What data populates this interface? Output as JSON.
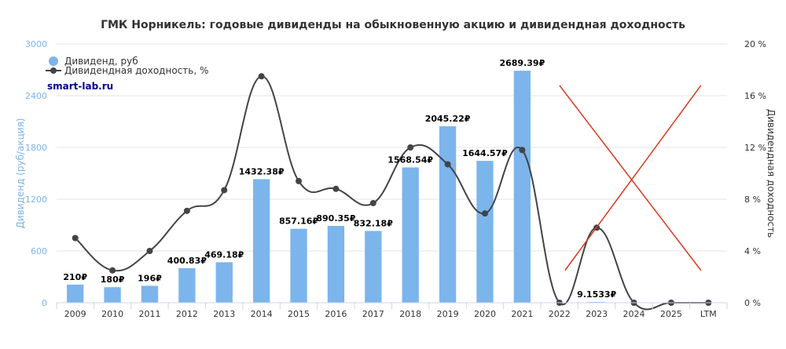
{
  "chart_data": {
    "type": "bar",
    "title": "ГМК Норникель: годовые дивиденды на обыкновенную акцию и дивидендная доходность",
    "credit": "smart-lab.ru",
    "categories": [
      "2009",
      "2010",
      "2011",
      "2012",
      "2013",
      "2014",
      "2015",
      "2016",
      "2017",
      "2018",
      "2019",
      "2020",
      "2021",
      "2022",
      "2023",
      "2024",
      "2025",
      "LTM"
    ],
    "ylabel": "Дивиденд (руб/акция)",
    "ylabel_right": "Дивидендная доходность",
    "ylim": [
      0,
      3000
    ],
    "ylim_right": [
      0,
      20
    ],
    "y_ticks": [
      "0",
      "600",
      "1200",
      "1800",
      "2400",
      "3000"
    ],
    "y_ticks_right": [
      "0 %",
      "4 %",
      "8 %",
      "12 %",
      "16 %",
      "20 %"
    ],
    "legend_position": "top-left",
    "grid": true,
    "series": [
      {
        "name": "Дивиденд, руб",
        "type": "bar",
        "color": "#7cb5ec",
        "values": [
          210,
          180,
          196,
          400.83,
          469.18,
          1432.38,
          857.16,
          890.35,
          832.18,
          1568.54,
          2045.22,
          1644.57,
          2689.39,
          null,
          9.1533,
          null,
          null,
          null
        ],
        "labels": [
          "210₽",
          "180₽",
          "196₽",
          "400.83₽",
          "469.18₽",
          "1432.38₽",
          "857.16₽",
          "890.35₽",
          "832.18₽",
          "1568.54₽",
          "2045.22₽",
          "1644.57₽",
          "2689.39₽",
          "",
          "9.1533₽",
          "",
          "",
          ""
        ]
      },
      {
        "name": "Дивидендная доходность, %",
        "type": "line",
        "color": "#434348",
        "values": [
          5.0,
          2.5,
          4.0,
          7.1,
          8.7,
          17.5,
          9.4,
          8.8,
          7.7,
          12.0,
          10.7,
          6.9,
          11.8,
          0.0,
          5.8,
          0.0,
          0.0,
          0.0
        ]
      }
    ],
    "annotation": {
      "type": "red-cross",
      "color": "#d9381e",
      "categories": [
        "2022",
        "LTM"
      ]
    }
  }
}
